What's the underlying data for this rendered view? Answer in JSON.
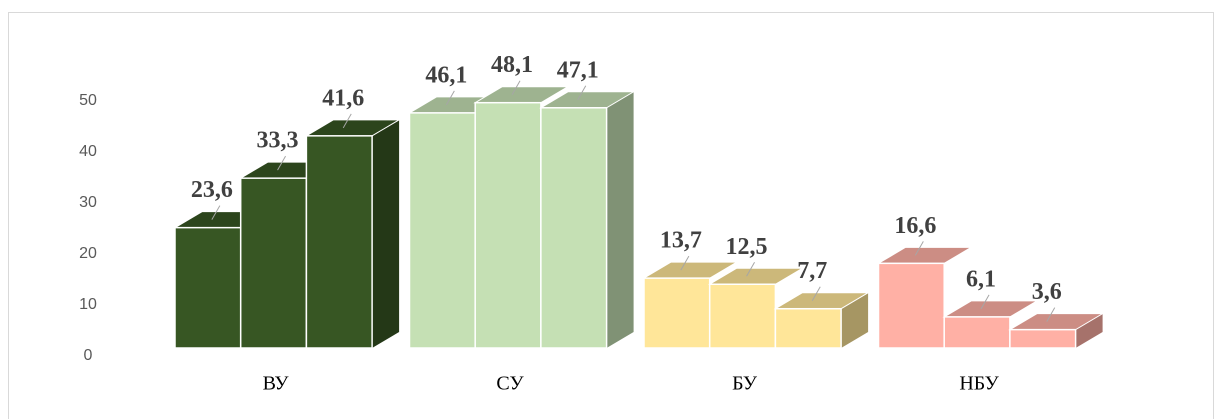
{
  "chart_data": {
    "type": "bar3d",
    "categories": [
      "ВУ",
      "СУ",
      "БУ",
      "НБУ"
    ],
    "category_colors": [
      "#375623",
      "#c5e0b4",
      "#ffe699",
      "#ffb0a5"
    ],
    "series": [
      {
        "values": [
          23.6,
          46.1,
          13.7,
          16.6
        ],
        "value_labels": [
          "23,6",
          "46,1",
          "13,7",
          "16,6"
        ]
      },
      {
        "values": [
          33.3,
          48.1,
          12.5,
          6.1
        ],
        "value_labels": [
          "33,3",
          "48,1",
          "12,5",
          "6,1"
        ]
      },
      {
        "values": [
          41.6,
          47.1,
          7.7,
          3.6
        ],
        "value_labels": [
          "41,6",
          "47,1",
          "7,7",
          "3,6"
        ]
      }
    ],
    "ylim": [
      0,
      50
    ],
    "yticks": [
      0,
      10,
      20,
      30,
      40,
      50
    ],
    "grid": false
  }
}
